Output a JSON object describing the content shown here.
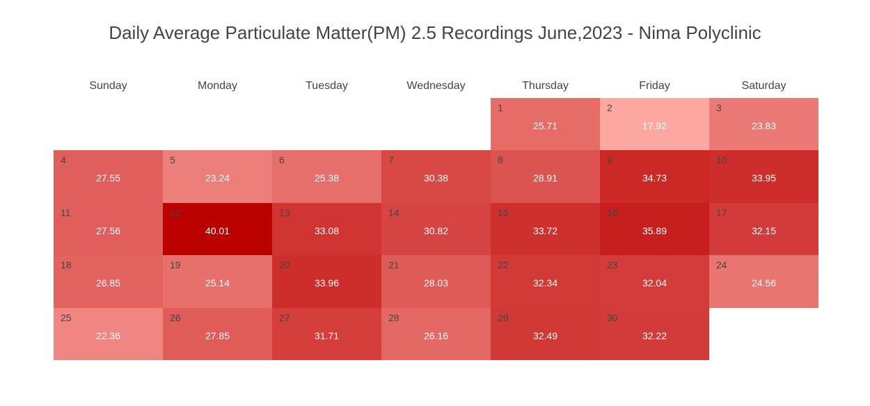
{
  "title": "Daily Average Particulate Matter(PM) 2.5 Recordings June,2023 - Nima Polyclinic",
  "chart_data": {
    "type": "heatmap",
    "subtype": "calendar",
    "title": "Daily Average Particulate Matter(PM) 2.5 Recordings June,2023 - Nima Polyclinic",
    "weekdays": [
      "Sunday",
      "Monday",
      "Tuesday",
      "Wednesday",
      "Thursday",
      "Friday",
      "Saturday"
    ],
    "first_weekday_index": 4,
    "days": [
      1,
      2,
      3,
      4,
      5,
      6,
      7,
      8,
      9,
      10,
      11,
      12,
      13,
      14,
      15,
      16,
      17,
      18,
      19,
      20,
      21,
      22,
      23,
      24,
      25,
      26,
      27,
      28,
      29,
      30
    ],
    "values": [
      25.71,
      17.92,
      23.83,
      27.55,
      23.24,
      25.38,
      30.38,
      28.91,
      34.73,
      33.95,
      27.56,
      40.01,
      33.08,
      30.82,
      33.72,
      35.89,
      32.15,
      26.85,
      25.14,
      33.96,
      28.03,
      32.34,
      32.04,
      24.56,
      22.36,
      27.85,
      31.71,
      26.16,
      32.49,
      32.22
    ],
    "color_scale": [
      "#fda7a1",
      "#bb0000"
    ]
  }
}
